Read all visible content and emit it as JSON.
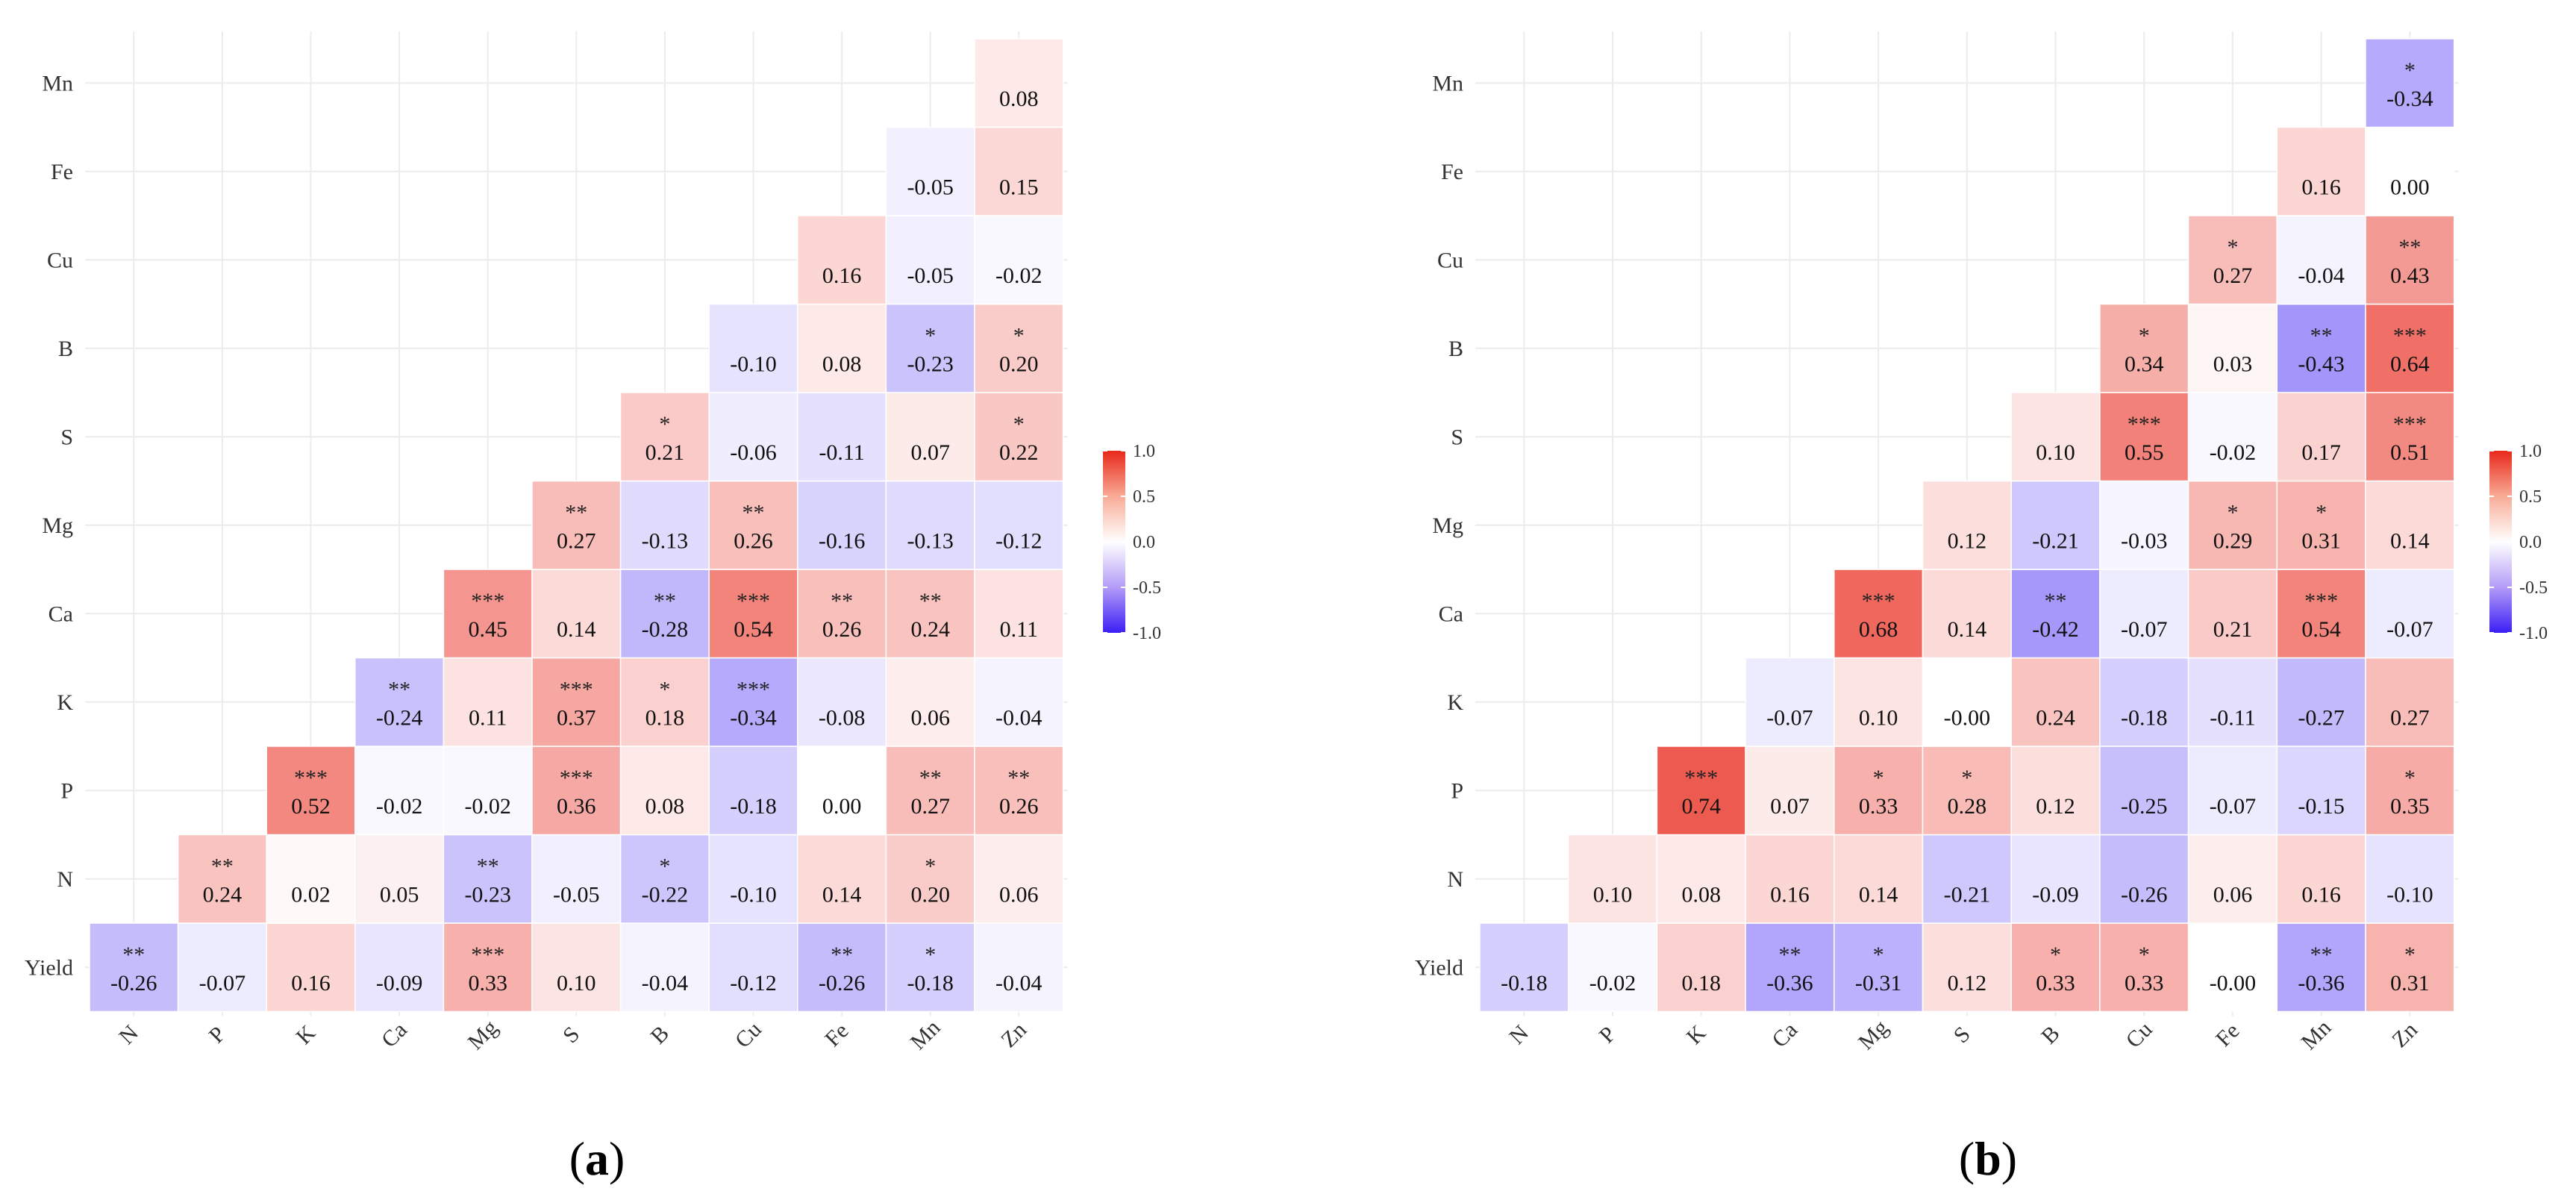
{
  "chart_data": [
    {
      "type": "heatmap",
      "panel_label": "(a)",
      "x_labels": [
        "N",
        "P",
        "K",
        "Ca",
        "Mg",
        "S",
        "B",
        "Cu",
        "Fe",
        "Mn",
        "Zn"
      ],
      "y_labels": [
        "Yield",
        "N",
        "P",
        "K",
        "Ca",
        "Mg",
        "S",
        "B",
        "Cu",
        "Fe",
        "Mn"
      ],
      "cells": [
        {
          "x": "N",
          "y": "Yield",
          "value": -0.26,
          "sig": "**"
        },
        {
          "x": "P",
          "y": "Yield",
          "value": -0.07,
          "sig": ""
        },
        {
          "x": "K",
          "y": "Yield",
          "value": 0.16,
          "sig": ""
        },
        {
          "x": "Ca",
          "y": "Yield",
          "value": -0.09,
          "sig": ""
        },
        {
          "x": "Mg",
          "y": "Yield",
          "value": 0.33,
          "sig": "***"
        },
        {
          "x": "S",
          "y": "Yield",
          "value": 0.1,
          "sig": ""
        },
        {
          "x": "B",
          "y": "Yield",
          "value": -0.04,
          "sig": ""
        },
        {
          "x": "Cu",
          "y": "Yield",
          "value": -0.12,
          "sig": ""
        },
        {
          "x": "Fe",
          "y": "Yield",
          "value": -0.26,
          "sig": "**"
        },
        {
          "x": "Mn",
          "y": "Yield",
          "value": -0.18,
          "sig": "*"
        },
        {
          "x": "Zn",
          "y": "Yield",
          "value": -0.04,
          "sig": ""
        },
        {
          "x": "P",
          "y": "N",
          "value": 0.24,
          "sig": "**"
        },
        {
          "x": "K",
          "y": "N",
          "value": 0.02,
          "sig": ""
        },
        {
          "x": "Ca",
          "y": "N",
          "value": 0.05,
          "sig": ""
        },
        {
          "x": "Mg",
          "y": "N",
          "value": -0.23,
          "sig": "**"
        },
        {
          "x": "S",
          "y": "N",
          "value": -0.05,
          "sig": ""
        },
        {
          "x": "B",
          "y": "N",
          "value": -0.22,
          "sig": "*"
        },
        {
          "x": "Cu",
          "y": "N",
          "value": -0.1,
          "sig": ""
        },
        {
          "x": "Fe",
          "y": "N",
          "value": 0.14,
          "sig": ""
        },
        {
          "x": "Mn",
          "y": "N",
          "value": 0.2,
          "sig": "*"
        },
        {
          "x": "Zn",
          "y": "N",
          "value": 0.06,
          "sig": ""
        },
        {
          "x": "K",
          "y": "P",
          "value": 0.52,
          "sig": "***"
        },
        {
          "x": "Ca",
          "y": "P",
          "value": -0.02,
          "sig": ""
        },
        {
          "x": "Mg",
          "y": "P",
          "value": -0.02,
          "sig": ""
        },
        {
          "x": "S",
          "y": "P",
          "value": 0.36,
          "sig": "***"
        },
        {
          "x": "B",
          "y": "P",
          "value": 0.08,
          "sig": ""
        },
        {
          "x": "Cu",
          "y": "P",
          "value": -0.18,
          "sig": ""
        },
        {
          "x": "Fe",
          "y": "P",
          "value": 0.0,
          "sig": ""
        },
        {
          "x": "Mn",
          "y": "P",
          "value": 0.27,
          "sig": "**"
        },
        {
          "x": "Zn",
          "y": "P",
          "value": 0.26,
          "sig": "**"
        },
        {
          "x": "Ca",
          "y": "K",
          "value": -0.24,
          "sig": "**"
        },
        {
          "x": "Mg",
          "y": "K",
          "value": 0.11,
          "sig": ""
        },
        {
          "x": "S",
          "y": "K",
          "value": 0.37,
          "sig": "***"
        },
        {
          "x": "B",
          "y": "K",
          "value": 0.18,
          "sig": "*"
        },
        {
          "x": "Cu",
          "y": "K",
          "value": -0.34,
          "sig": "***"
        },
        {
          "x": "Fe",
          "y": "K",
          "value": -0.08,
          "sig": ""
        },
        {
          "x": "Mn",
          "y": "K",
          "value": 0.06,
          "sig": ""
        },
        {
          "x": "Zn",
          "y": "K",
          "value": -0.04,
          "sig": ""
        },
        {
          "x": "Mg",
          "y": "Ca",
          "value": 0.45,
          "sig": "***"
        },
        {
          "x": "S",
          "y": "Ca",
          "value": 0.14,
          "sig": ""
        },
        {
          "x": "B",
          "y": "Ca",
          "value": -0.28,
          "sig": "**"
        },
        {
          "x": "Cu",
          "y": "Ca",
          "value": 0.54,
          "sig": "***"
        },
        {
          "x": "Fe",
          "y": "Ca",
          "value": 0.26,
          "sig": "**"
        },
        {
          "x": "Mn",
          "y": "Ca",
          "value": 0.24,
          "sig": "**"
        },
        {
          "x": "Zn",
          "y": "Ca",
          "value": 0.11,
          "sig": ""
        },
        {
          "x": "S",
          "y": "Mg",
          "value": 0.27,
          "sig": "**"
        },
        {
          "x": "B",
          "y": "Mg",
          "value": -0.13,
          "sig": ""
        },
        {
          "x": "Cu",
          "y": "Mg",
          "value": 0.26,
          "sig": "**"
        },
        {
          "x": "Fe",
          "y": "Mg",
          "value": -0.16,
          "sig": ""
        },
        {
          "x": "Mn",
          "y": "Mg",
          "value": -0.13,
          "sig": ""
        },
        {
          "x": "Zn",
          "y": "Mg",
          "value": -0.12,
          "sig": ""
        },
        {
          "x": "B",
          "y": "S",
          "value": 0.21,
          "sig": "*"
        },
        {
          "x": "Cu",
          "y": "S",
          "value": -0.06,
          "sig": ""
        },
        {
          "x": "Fe",
          "y": "S",
          "value": -0.11,
          "sig": ""
        },
        {
          "x": "Mn",
          "y": "S",
          "value": 0.07,
          "sig": ""
        },
        {
          "x": "Zn",
          "y": "S",
          "value": 0.22,
          "sig": "*"
        },
        {
          "x": "Cu",
          "y": "B",
          "value": -0.1,
          "sig": ""
        },
        {
          "x": "Fe",
          "y": "B",
          "value": 0.08,
          "sig": ""
        },
        {
          "x": "Mn",
          "y": "B",
          "value": -0.23,
          "sig": "*"
        },
        {
          "x": "Zn",
          "y": "B",
          "value": 0.2,
          "sig": "*"
        },
        {
          "x": "Fe",
          "y": "Cu",
          "value": 0.16,
          "sig": ""
        },
        {
          "x": "Mn",
          "y": "Cu",
          "value": -0.05,
          "sig": ""
        },
        {
          "x": "Zn",
          "y": "Cu",
          "value": -0.02,
          "sig": ""
        },
        {
          "x": "Mn",
          "y": "Fe",
          "value": -0.05,
          "sig": ""
        },
        {
          "x": "Zn",
          "y": "Fe",
          "value": 0.15,
          "sig": ""
        },
        {
          "x": "Zn",
          "y": "Mn",
          "value": 0.08,
          "sig": ""
        }
      ],
      "color_scale": {
        "min": -1.0,
        "max": 1.0,
        "low": "#3b1ff5",
        "mid": "#ffffff",
        "high": "#e8281a",
        "ticks": [
          "1.0",
          "0.5",
          "0.0",
          "-0.5",
          "-1.0"
        ]
      }
    },
    {
      "type": "heatmap",
      "panel_label": "(b)",
      "x_labels": [
        "N",
        "P",
        "K",
        "Ca",
        "Mg",
        "S",
        "B",
        "Cu",
        "Fe",
        "Mn",
        "Zn"
      ],
      "y_labels": [
        "Yield",
        "N",
        "P",
        "K",
        "Ca",
        "Mg",
        "S",
        "B",
        "Cu",
        "Fe",
        "Mn"
      ],
      "cells": [
        {
          "x": "N",
          "y": "Yield",
          "value": -0.18,
          "sig": ""
        },
        {
          "x": "P",
          "y": "Yield",
          "value": -0.02,
          "sig": ""
        },
        {
          "x": "K",
          "y": "Yield",
          "value": 0.18,
          "sig": ""
        },
        {
          "x": "Ca",
          "y": "Yield",
          "value": -0.36,
          "sig": "**"
        },
        {
          "x": "Mg",
          "y": "Yield",
          "value": -0.31,
          "sig": "*"
        },
        {
          "x": "S",
          "y": "Yield",
          "value": 0.12,
          "sig": ""
        },
        {
          "x": "B",
          "y": "Yield",
          "value": 0.33,
          "sig": "*"
        },
        {
          "x": "Cu",
          "y": "Yield",
          "value": 0.33,
          "sig": "*"
        },
        {
          "x": "Fe",
          "y": "Yield",
          "value": -0.0,
          "label": "-0.00",
          "sig": ""
        },
        {
          "x": "Mn",
          "y": "Yield",
          "value": -0.36,
          "sig": "**"
        },
        {
          "x": "Zn",
          "y": "Yield",
          "value": 0.31,
          "sig": "*"
        },
        {
          "x": "P",
          "y": "N",
          "value": 0.1,
          "sig": ""
        },
        {
          "x": "K",
          "y": "N",
          "value": 0.08,
          "sig": ""
        },
        {
          "x": "Ca",
          "y": "N",
          "value": 0.16,
          "sig": ""
        },
        {
          "x": "Mg",
          "y": "N",
          "value": 0.14,
          "sig": ""
        },
        {
          "x": "S",
          "y": "N",
          "value": -0.21,
          "sig": ""
        },
        {
          "x": "B",
          "y": "N",
          "value": -0.09,
          "sig": ""
        },
        {
          "x": "Cu",
          "y": "N",
          "value": -0.26,
          "sig": ""
        },
        {
          "x": "Fe",
          "y": "N",
          "value": 0.06,
          "sig": ""
        },
        {
          "x": "Mn",
          "y": "N",
          "value": 0.16,
          "sig": ""
        },
        {
          "x": "Zn",
          "y": "N",
          "value": -0.1,
          "sig": ""
        },
        {
          "x": "K",
          "y": "P",
          "value": 0.74,
          "sig": "***"
        },
        {
          "x": "Ca",
          "y": "P",
          "value": 0.07,
          "sig": ""
        },
        {
          "x": "Mg",
          "y": "P",
          "value": 0.33,
          "sig": "*"
        },
        {
          "x": "S",
          "y": "P",
          "value": 0.28,
          "sig": "*"
        },
        {
          "x": "B",
          "y": "P",
          "value": 0.12,
          "sig": ""
        },
        {
          "x": "Cu",
          "y": "P",
          "value": -0.25,
          "sig": ""
        },
        {
          "x": "Fe",
          "y": "P",
          "value": -0.07,
          "sig": ""
        },
        {
          "x": "Mn",
          "y": "P",
          "value": -0.15,
          "sig": ""
        },
        {
          "x": "Zn",
          "y": "P",
          "value": 0.35,
          "sig": "*"
        },
        {
          "x": "Ca",
          "y": "K",
          "value": -0.07,
          "sig": ""
        },
        {
          "x": "Mg",
          "y": "K",
          "value": 0.1,
          "sig": ""
        },
        {
          "x": "S",
          "y": "K",
          "value": -0.0,
          "label": "-0.00",
          "sig": ""
        },
        {
          "x": "B",
          "y": "K",
          "value": 0.24,
          "sig": ""
        },
        {
          "x": "Cu",
          "y": "K",
          "value": -0.18,
          "sig": ""
        },
        {
          "x": "Fe",
          "y": "K",
          "value": -0.11,
          "sig": ""
        },
        {
          "x": "Mn",
          "y": "K",
          "value": -0.27,
          "sig": ""
        },
        {
          "x": "Zn",
          "y": "K",
          "value": 0.27,
          "sig": ""
        },
        {
          "x": "Mg",
          "y": "Ca",
          "value": 0.68,
          "sig": "***"
        },
        {
          "x": "S",
          "y": "Ca",
          "value": 0.14,
          "sig": ""
        },
        {
          "x": "B",
          "y": "Ca",
          "value": -0.42,
          "sig": "**"
        },
        {
          "x": "Cu",
          "y": "Ca",
          "value": -0.07,
          "sig": ""
        },
        {
          "x": "Fe",
          "y": "Ca",
          "value": 0.21,
          "sig": ""
        },
        {
          "x": "Mn",
          "y": "Ca",
          "value": 0.54,
          "sig": "***"
        },
        {
          "x": "Zn",
          "y": "Ca",
          "value": -0.07,
          "sig": ""
        },
        {
          "x": "S",
          "y": "Mg",
          "value": 0.12,
          "sig": ""
        },
        {
          "x": "B",
          "y": "Mg",
          "value": -0.21,
          "sig": ""
        },
        {
          "x": "Cu",
          "y": "Mg",
          "value": -0.03,
          "sig": ""
        },
        {
          "x": "Fe",
          "y": "Mg",
          "value": 0.29,
          "sig": "*"
        },
        {
          "x": "Mn",
          "y": "Mg",
          "value": 0.31,
          "sig": "*"
        },
        {
          "x": "Zn",
          "y": "Mg",
          "value": 0.14,
          "sig": ""
        },
        {
          "x": "B",
          "y": "S",
          "value": 0.1,
          "sig": ""
        },
        {
          "x": "Cu",
          "y": "S",
          "value": 0.55,
          "sig": "***"
        },
        {
          "x": "Fe",
          "y": "S",
          "value": -0.02,
          "sig": ""
        },
        {
          "x": "Mn",
          "y": "S",
          "value": 0.17,
          "sig": ""
        },
        {
          "x": "Zn",
          "y": "S",
          "value": 0.51,
          "sig": "***"
        },
        {
          "x": "Cu",
          "y": "B",
          "value": 0.34,
          "sig": "*"
        },
        {
          "x": "Fe",
          "y": "B",
          "value": 0.03,
          "sig": ""
        },
        {
          "x": "Mn",
          "y": "B",
          "value": -0.43,
          "sig": "**"
        },
        {
          "x": "Zn",
          "y": "B",
          "value": 0.64,
          "sig": "***"
        },
        {
          "x": "Fe",
          "y": "Cu",
          "value": 0.27,
          "sig": "*"
        },
        {
          "x": "Mn",
          "y": "Cu",
          "value": -0.04,
          "sig": ""
        },
        {
          "x": "Zn",
          "y": "Cu",
          "value": 0.43,
          "sig": "**"
        },
        {
          "x": "Mn",
          "y": "Fe",
          "value": 0.16,
          "sig": ""
        },
        {
          "x": "Zn",
          "y": "Fe",
          "value": 0.0,
          "sig": ""
        },
        {
          "x": "Zn",
          "y": "Mn",
          "value": -0.34,
          "sig": "*"
        }
      ],
      "color_scale": {
        "min": -1.0,
        "max": 1.0,
        "low": "#3b1ff5",
        "mid": "#ffffff",
        "high": "#e8281a",
        "ticks": [
          "1.0",
          "0.5",
          "0.0",
          "-0.5",
          "-1.0"
        ]
      }
    }
  ]
}
